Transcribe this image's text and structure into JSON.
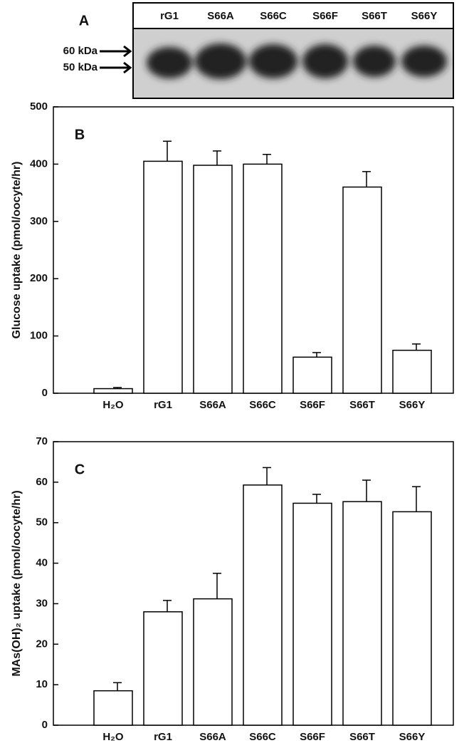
{
  "blot": {
    "panel": "A",
    "lanes": [
      "rG1",
      "S66A",
      "S66C",
      "S66F",
      "S66T",
      "S66Y"
    ],
    "markers": [
      "60 kDa",
      "50 kDa"
    ]
  },
  "chart_data": [
    {
      "type": "bar",
      "panel": "B",
      "ylabel": "Glucose uptake (pmol/oocyte/hr)",
      "categories": [
        "H₂O",
        "rG1",
        "S66A",
        "S66C",
        "S66F",
        "S66T",
        "S66Y"
      ],
      "values": [
        8,
        405,
        398,
        400,
        63,
        360,
        75
      ],
      "errors": [
        2,
        35,
        25,
        17,
        8,
        27,
        11
      ],
      "color": "#ffffff",
      "ylim": [
        0,
        500
      ],
      "yticks": [
        0,
        100,
        200,
        300,
        400,
        500
      ]
    },
    {
      "type": "bar",
      "panel": "C",
      "ylabel": "MAs(OH)₂ uptake (pmol/oocyte/hr)",
      "categories": [
        "H₂O",
        "rG1",
        "S66A",
        "S66C",
        "S66F",
        "S66T",
        "S66Y"
      ],
      "values": [
        8.5,
        28,
        31.2,
        59.3,
        54.8,
        55.2,
        52.7
      ],
      "errors": [
        2,
        2.8,
        6.3,
        4.3,
        2.2,
        5.3,
        6.2
      ],
      "color": "#ffffff",
      "ylim": [
        0,
        70
      ],
      "yticks": [
        0,
        10,
        20,
        30,
        40,
        50,
        60,
        70
      ]
    }
  ]
}
